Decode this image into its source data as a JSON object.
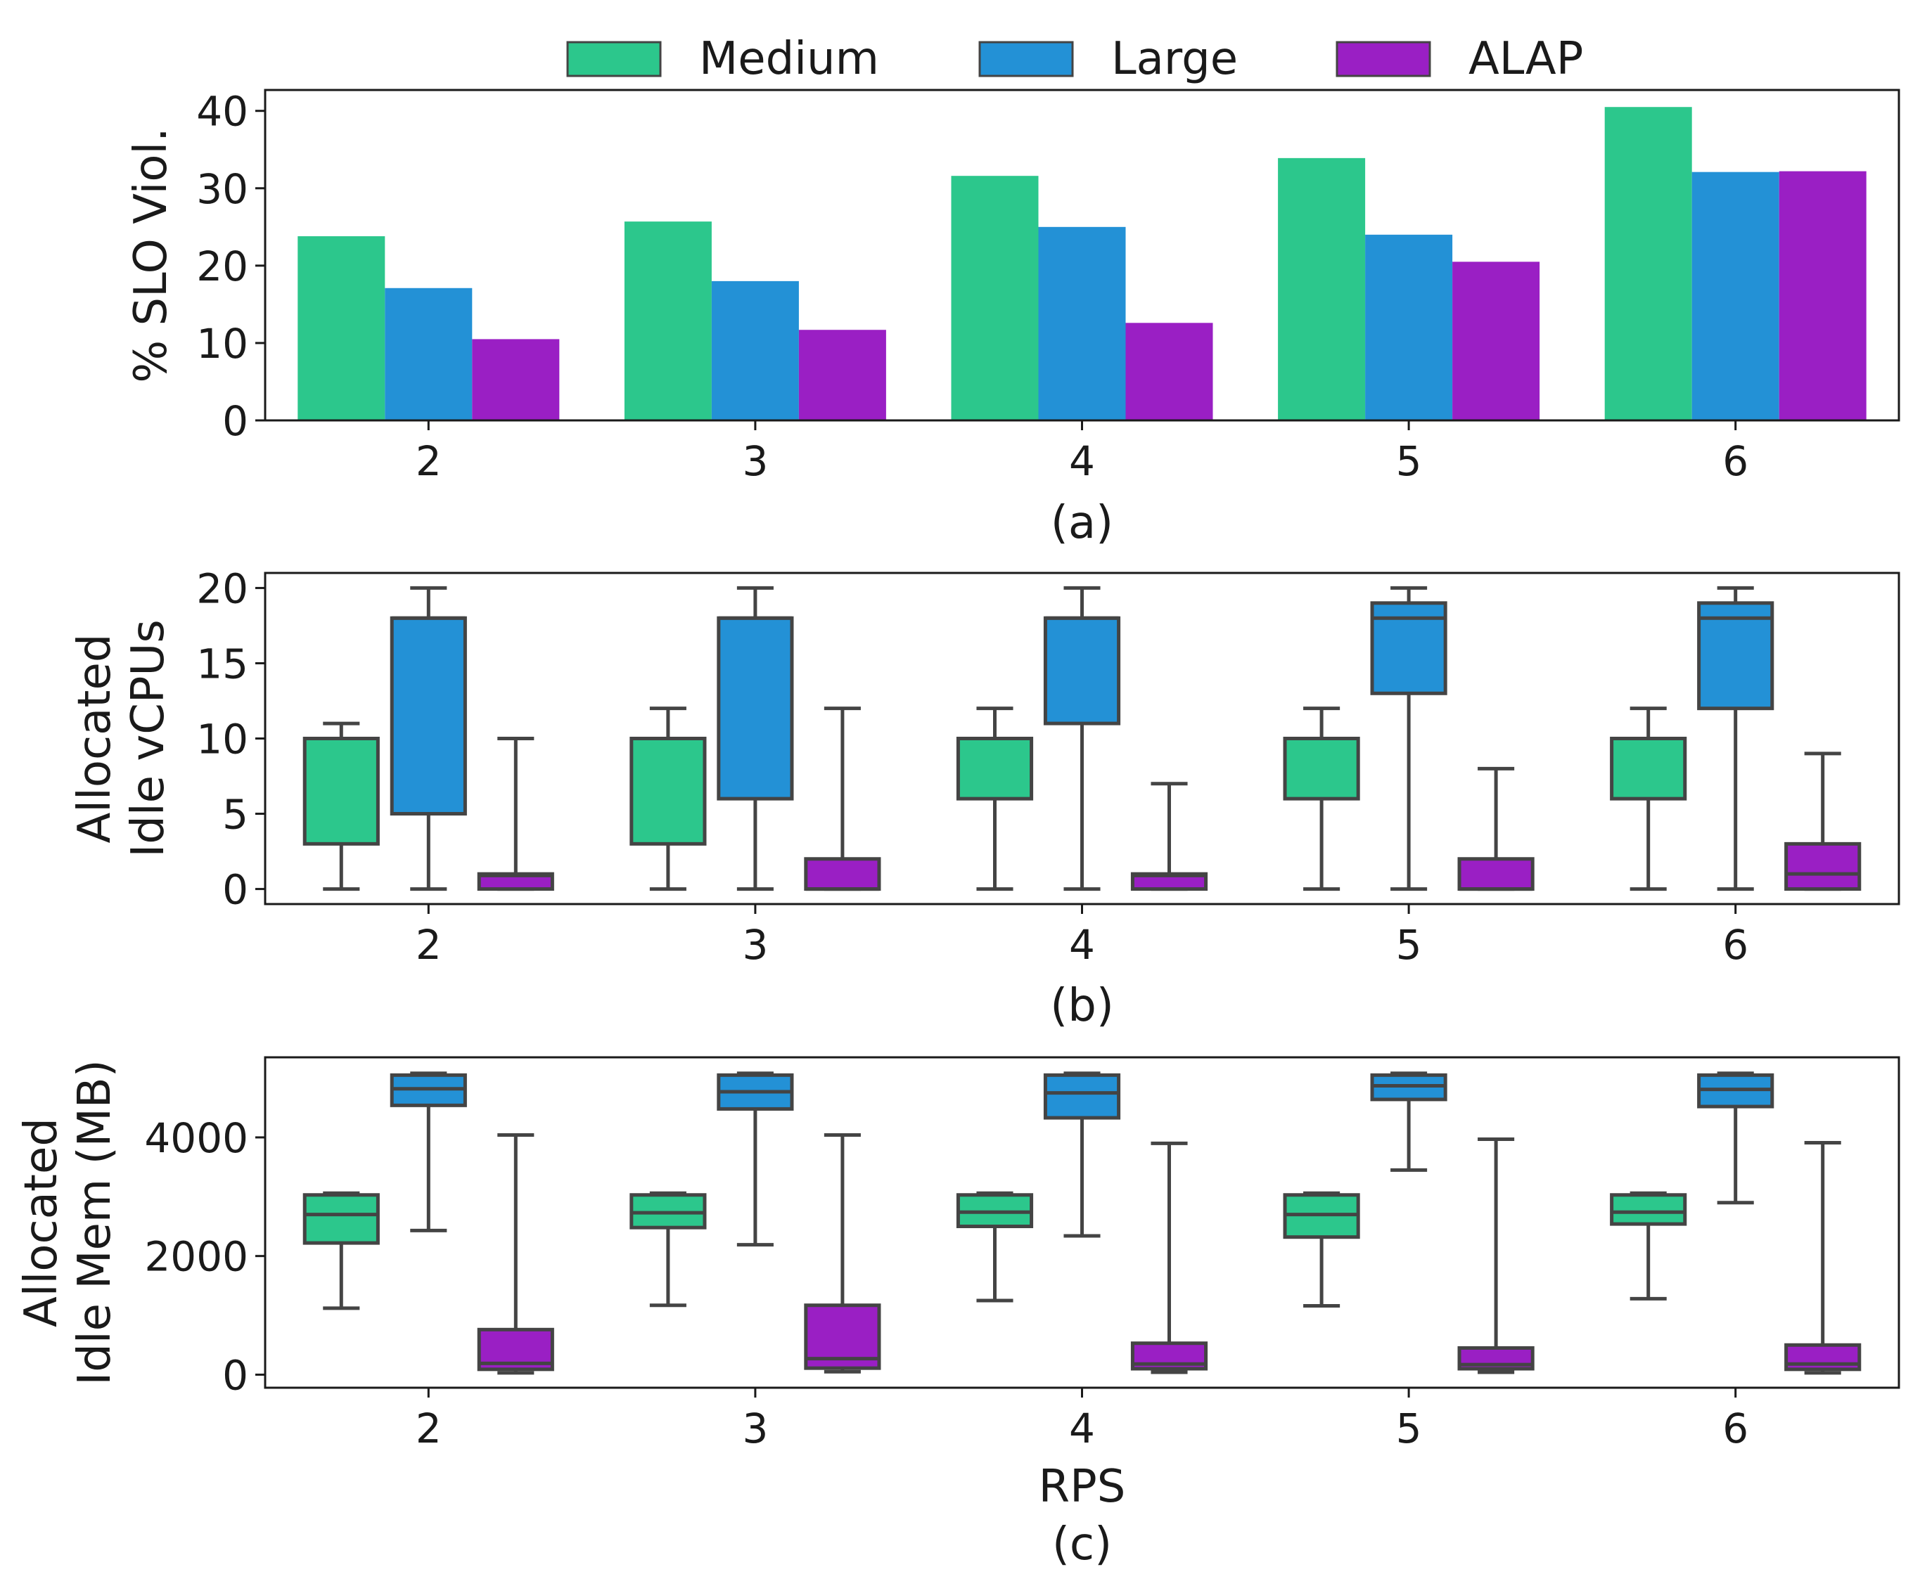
{
  "legend": [
    {
      "name": "Medium",
      "color": "#2cc78c"
    },
    {
      "name": "Large",
      "color": "#2391d6"
    },
    {
      "name": "ALAP",
      "color": "#9a1fc4"
    }
  ],
  "colors": {
    "box_edge": "#444444",
    "axis": "#1a1a1a"
  },
  "chart_data": [
    {
      "type": "bar",
      "categories": [
        "2",
        "3",
        "4",
        "5",
        "6"
      ],
      "ylabel": "% SLO Viol.",
      "caption": "(a)",
      "ylim": [
        0,
        42.7
      ],
      "yticks": [
        0,
        10,
        20,
        30,
        40
      ],
      "series": [
        {
          "name": "Medium",
          "values": [
            23.8,
            25.7,
            31.6,
            33.9,
            40.5
          ]
        },
        {
          "name": "Large",
          "values": [
            17.1,
            18.0,
            25.0,
            24.0,
            32.1
          ]
        },
        {
          "name": "ALAP",
          "values": [
            10.5,
            11.7,
            12.6,
            20.5,
            32.2
          ]
        }
      ]
    },
    {
      "type": "box",
      "categories": [
        "2",
        "3",
        "4",
        "5",
        "6"
      ],
      "ylabel": [
        "Allocated",
        "Idle vCPUs"
      ],
      "caption": "(b)",
      "ylim": [
        -1,
        21
      ],
      "yticks": [
        0,
        5,
        10,
        15,
        20
      ],
      "series": [
        {
          "name": "Medium",
          "boxes": [
            {
              "min": 0,
              "q1": 3,
              "median": 10,
              "q3": 10,
              "max": 11
            },
            {
              "min": 0,
              "q1": 3,
              "median": 10,
              "q3": 10,
              "max": 12
            },
            {
              "min": 0,
              "q1": 6,
              "median": 10,
              "q3": 10,
              "max": 12
            },
            {
              "min": 0,
              "q1": 6,
              "median": 10,
              "q3": 10,
              "max": 12
            },
            {
              "min": 0,
              "q1": 6,
              "median": 10,
              "q3": 10,
              "max": 12
            }
          ]
        },
        {
          "name": "Large",
          "boxes": [
            {
              "min": 0,
              "q1": 5,
              "median": 18,
              "q3": 18,
              "max": 20
            },
            {
              "min": 0,
              "q1": 6,
              "median": 18,
              "q3": 18,
              "max": 20
            },
            {
              "min": 0,
              "q1": 11,
              "median": 18,
              "q3": 18,
              "max": 20
            },
            {
              "min": 0,
              "q1": 13,
              "median": 18,
              "q3": 19,
              "max": 20
            },
            {
              "min": 0,
              "q1": 12,
              "median": 18,
              "q3": 19,
              "max": 20
            }
          ]
        },
        {
          "name": "ALAP",
          "boxes": [
            {
              "min": 0,
              "q1": 0,
              "median": 0.9,
              "q3": 1,
              "max": 10
            },
            {
              "min": 0,
              "q1": 0,
              "median": 0,
              "q3": 2,
              "max": 12
            },
            {
              "min": 0,
              "q1": 0,
              "median": 0.9,
              "q3": 1,
              "max": 7
            },
            {
              "min": 0,
              "q1": 0,
              "median": 0,
              "q3": 2,
              "max": 8
            },
            {
              "min": 0,
              "q1": 0,
              "median": 1,
              "q3": 3,
              "max": 9
            }
          ]
        }
      ]
    },
    {
      "type": "box",
      "categories": [
        "2",
        "3",
        "4",
        "5",
        "6"
      ],
      "ylabel": [
        "Allocated",
        "Idle Mem (MB)"
      ],
      "xlabel": "RPS",
      "caption": "(c)",
      "ylim": [
        -220,
        5350
      ],
      "yticks": [
        0,
        2000,
        4000
      ],
      "series": [
        {
          "name": "Medium",
          "boxes": [
            {
              "min": 1120,
              "q1": 2220,
              "median": 2700,
              "q3": 3030,
              "max": 3060
            },
            {
              "min": 1170,
              "q1": 2480,
              "median": 2730,
              "q3": 3030,
              "max": 3060
            },
            {
              "min": 1250,
              "q1": 2500,
              "median": 2740,
              "q3": 3030,
              "max": 3060
            },
            {
              "min": 1160,
              "q1": 2320,
              "median": 2700,
              "q3": 3030,
              "max": 3060
            },
            {
              "min": 1280,
              "q1": 2540,
              "median": 2740,
              "q3": 3030,
              "max": 3060
            }
          ]
        },
        {
          "name": "Large",
          "boxes": [
            {
              "min": 2430,
              "q1": 4540,
              "median": 4820,
              "q3": 5050,
              "max": 5080
            },
            {
              "min": 2190,
              "q1": 4480,
              "median": 4770,
              "q3": 5050,
              "max": 5080
            },
            {
              "min": 2340,
              "q1": 4330,
              "median": 4750,
              "q3": 5050,
              "max": 5080
            },
            {
              "min": 3450,
              "q1": 4640,
              "median": 4870,
              "q3": 5050,
              "max": 5080
            },
            {
              "min": 2900,
              "q1": 4520,
              "median": 4810,
              "q3": 5050,
              "max": 5080
            }
          ]
        },
        {
          "name": "ALAP",
          "boxes": [
            {
              "min": 30,
              "q1": 90,
              "median": 190,
              "q3": 760,
              "max": 4040
            },
            {
              "min": 50,
              "q1": 110,
              "median": 270,
              "q3": 1170,
              "max": 4040
            },
            {
              "min": 40,
              "q1": 100,
              "median": 180,
              "q3": 530,
              "max": 3900
            },
            {
              "min": 40,
              "q1": 100,
              "median": 170,
              "q3": 450,
              "max": 3970
            },
            {
              "min": 30,
              "q1": 90,
              "median": 180,
              "q3": 500,
              "max": 3910
            }
          ]
        }
      ]
    }
  ]
}
